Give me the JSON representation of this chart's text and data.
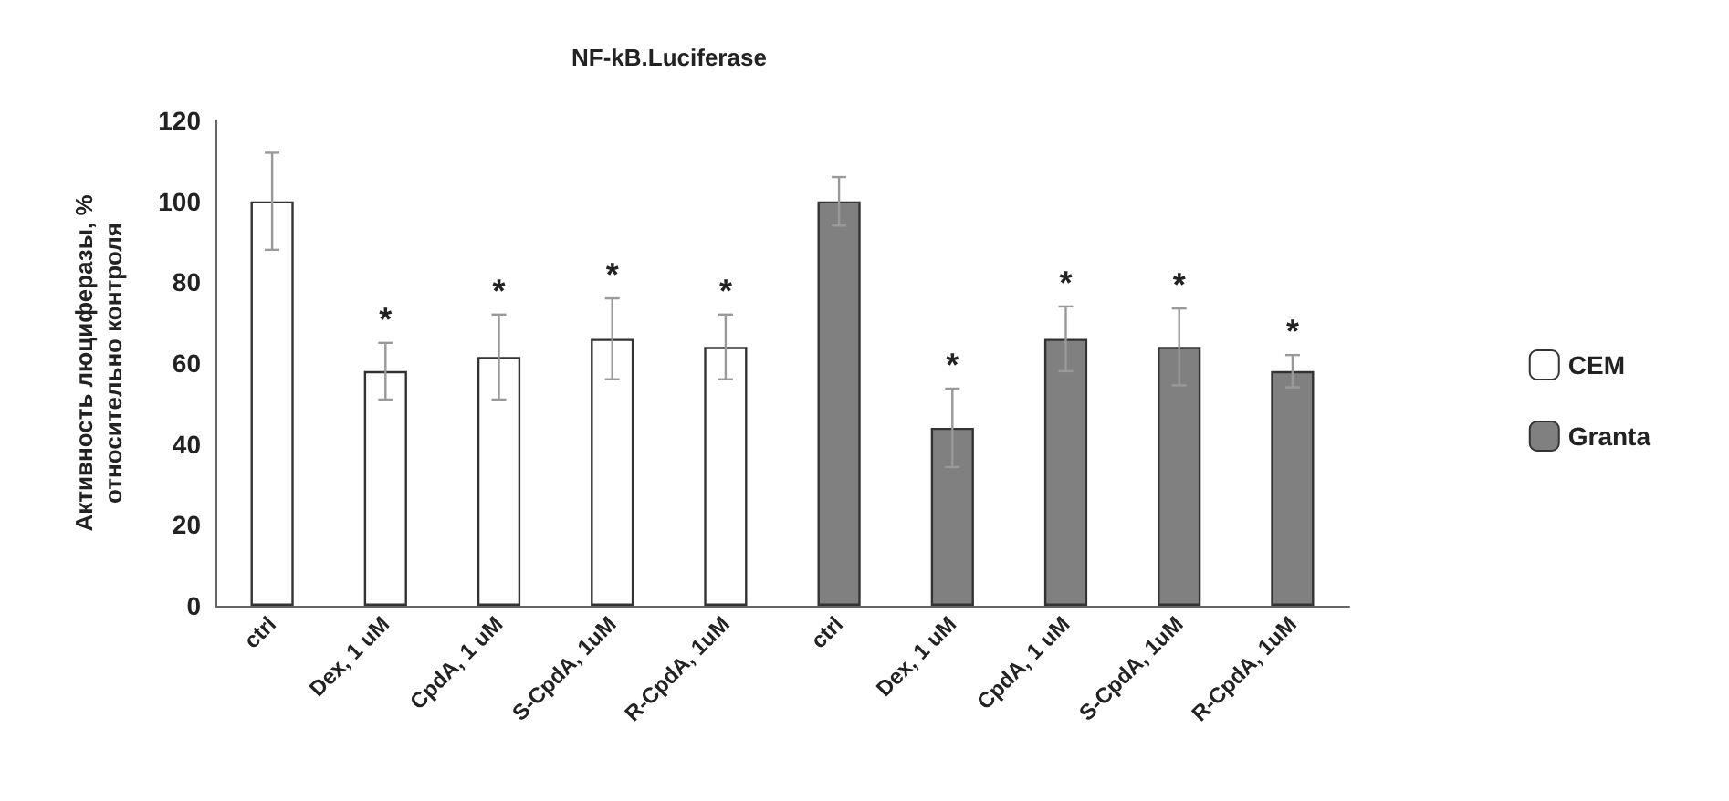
{
  "chart_data": {
    "type": "bar",
    "title": "NF-kB.Luciferase",
    "ylabel": "Активность люциферазы, %\nотносительно контроля",
    "categories": [
      "ctrl",
      "Dex, 1 uM",
      "CpdA, 1 uM",
      "S-CpdA, 1uM",
      "R-CpdA, 1uM",
      "ctrl",
      "Dex, 1 uM",
      "CpdA, 1 uM",
      "S-CpdA, 1uM",
      "R-CpdA, 1uM"
    ],
    "series": [
      {
        "name": "CEM",
        "color": "#ffffff",
        "values": [
          100,
          58,
          61.5,
          66,
          64,
          null,
          null,
          null,
          null,
          null
        ],
        "errors": [
          12,
          7,
          10.5,
          10,
          8,
          null,
          null,
          null,
          null,
          null
        ],
        "value_labels": [
          null,
          "*",
          "*",
          "*",
          "*",
          null,
          null,
          null,
          null,
          null
        ]
      },
      {
        "name": "Granta",
        "color": "#808080",
        "values": [
          null,
          null,
          null,
          null,
          null,
          100,
          44,
          66,
          64,
          58
        ],
        "errors": [
          null,
          null,
          null,
          null,
          null,
          6,
          9.7,
          8,
          9.5,
          4
        ],
        "value_labels": [
          null,
          null,
          null,
          null,
          null,
          null,
          "*",
          "*",
          "*",
          "*"
        ]
      }
    ],
    "ylim": [
      0,
      120
    ],
    "yticks": [
      0,
      20,
      40,
      60,
      80,
      100,
      120
    ],
    "grid": false,
    "legend": "right"
  }
}
